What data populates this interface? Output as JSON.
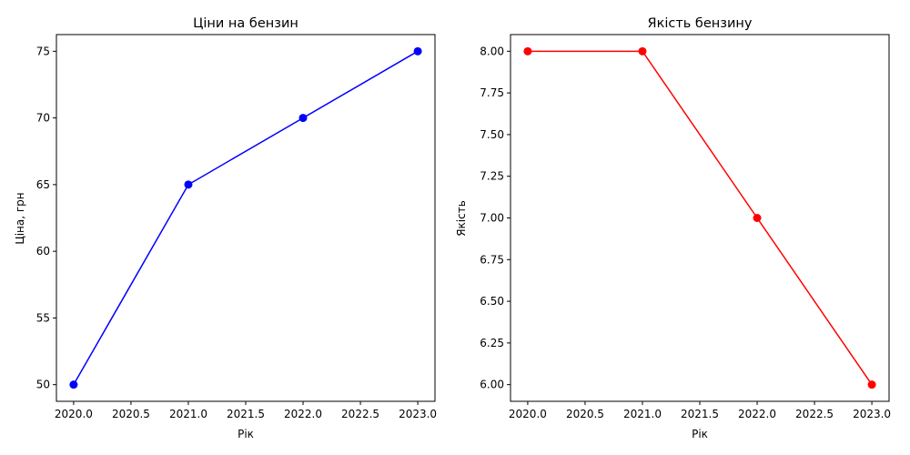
{
  "chart_data": [
    {
      "type": "line",
      "title": "Ціни на бензин",
      "xlabel": "Рік",
      "ylabel": "Ціна, грн",
      "x": [
        2020,
        2021,
        2022,
        2023
      ],
      "series": [
        {
          "values": [
            50,
            65,
            70,
            75
          ],
          "color": "#0000ff"
        }
      ],
      "xlim": [
        2019.85,
        2023.15
      ],
      "ylim": [
        48.75,
        76.25
      ],
      "xticks": [
        2020.0,
        2020.5,
        2021.0,
        2021.5,
        2022.0,
        2022.5,
        2023.0
      ],
      "xtick_labels": [
        "2020.0",
        "2020.5",
        "2021.0",
        "2021.5",
        "2022.0",
        "2022.5",
        "2023.0"
      ],
      "yticks": [
        50,
        55,
        60,
        65,
        70,
        75
      ],
      "ytick_labels": [
        "50",
        "55",
        "60",
        "65",
        "70",
        "75"
      ],
      "grid": false,
      "marker": "circle"
    },
    {
      "type": "line",
      "title": "Якість бензину",
      "xlabel": "Рік",
      "ylabel": "Якість",
      "x": [
        2020,
        2021,
        2022,
        2023
      ],
      "series": [
        {
          "values": [
            8,
            8,
            7,
            6
          ],
          "color": "#ff0000"
        }
      ],
      "xlim": [
        2019.85,
        2023.15
      ],
      "ylim": [
        5.9,
        8.1
      ],
      "xticks": [
        2020.0,
        2020.5,
        2021.0,
        2021.5,
        2022.0,
        2022.5,
        2023.0
      ],
      "xtick_labels": [
        "2020.0",
        "2020.5",
        "2021.0",
        "2021.5",
        "2022.0",
        "2022.5",
        "2023.0"
      ],
      "yticks": [
        6.0,
        6.25,
        6.5,
        6.75,
        7.0,
        7.25,
        7.5,
        7.75,
        8.0
      ],
      "ytick_labels": [
        "6.00",
        "6.25",
        "6.50",
        "6.75",
        "7.00",
        "7.25",
        "7.50",
        "7.75",
        "8.00"
      ],
      "grid": false,
      "marker": "circle"
    }
  ]
}
